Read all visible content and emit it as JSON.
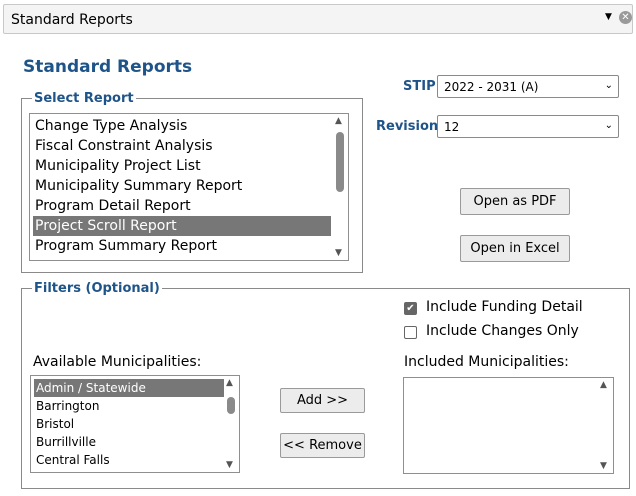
{
  "window": {
    "title": "Standard Reports"
  },
  "page": {
    "heading": "Standard Reports"
  },
  "select_report": {
    "legend": "Select Report",
    "items": [
      "Change Type Analysis",
      "Fiscal Constraint Analysis",
      "Municipality Project List",
      "Municipality Summary Report",
      "Program Detail Report",
      "Project Scroll Report",
      "Program Summary Report"
    ],
    "selected": "Project Scroll Report"
  },
  "stip": {
    "label": "STIP:",
    "value": "2022 - 2031 (A)"
  },
  "revision": {
    "label": "Revision:",
    "value": "12"
  },
  "buttons": {
    "open_pdf": "Open as PDF",
    "open_excel": "Open in Excel",
    "add": "Add >>",
    "remove": "<< Remove"
  },
  "filters": {
    "legend": "Filters (Optional)",
    "include_funding_detail": {
      "label": "Include Funding Detail",
      "checked": true
    },
    "include_changes_only": {
      "label": "Include Changes Only",
      "checked": false
    },
    "available_label": "Available Municipalities:",
    "included_label": "Included Municipalities:",
    "available": [
      "Admin / Statewide",
      "Barrington",
      "Bristol",
      "Burrillville",
      "Central Falls"
    ],
    "available_selected": "Admin / Statewide",
    "included": []
  },
  "icons": {
    "dropdown": "▼",
    "close": "✕",
    "check": "✔",
    "scroll_up": "▲",
    "scroll_down": "▼",
    "select_arrow": "⌄"
  }
}
